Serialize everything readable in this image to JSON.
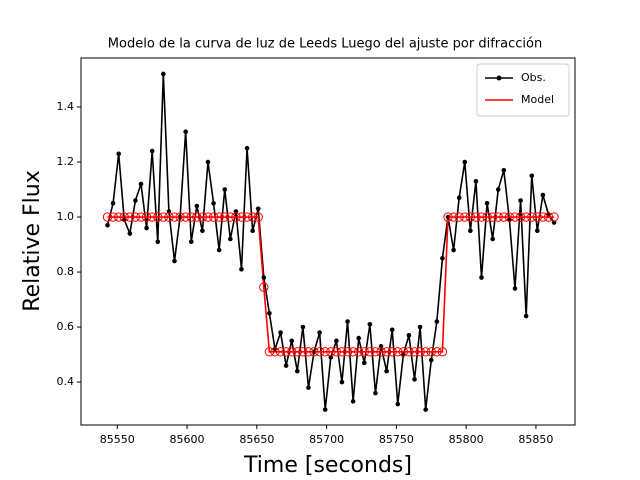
{
  "chart_data": {
    "type": "line",
    "title": "Modelo de la curva de luz de Leeds Luego del ajuste por difracción",
    "xlabel": "Time [seconds]",
    "ylabel": "Relative Flux",
    "x": [
      85543,
      85547,
      85551,
      85555,
      85559,
      85563,
      85567,
      85571,
      85575,
      85579,
      85583,
      85587,
      85591,
      85595,
      85599,
      85603,
      85607,
      85611,
      85615,
      85619,
      85623,
      85627,
      85631,
      85635,
      85639,
      85643,
      85647,
      85651,
      85655,
      85659,
      85663,
      85667,
      85671,
      85675,
      85679,
      85683,
      85687,
      85691,
      85695,
      85699,
      85703,
      85707,
      85711,
      85715,
      85719,
      85723,
      85727,
      85731,
      85735,
      85739,
      85743,
      85747,
      85751,
      85755,
      85759,
      85763,
      85767,
      85771,
      85775,
      85779,
      85783,
      85787,
      85791,
      85795,
      85799,
      85803,
      85807,
      85811,
      85815,
      85819,
      85823,
      85827,
      85831,
      85835,
      85839,
      85843,
      85847,
      85851,
      85855,
      85859,
      85863
    ],
    "series": [
      {
        "name": "Obs.",
        "color": "#000000",
        "marker": "dot",
        "values": [
          0.97,
          1.05,
          1.23,
          0.99,
          0.94,
          1.06,
          1.12,
          0.96,
          1.24,
          0.91,
          1.52,
          1.02,
          0.84,
          1.0,
          1.31,
          0.91,
          1.04,
          0.95,
          1.2,
          1.05,
          0.88,
          1.1,
          0.92,
          1.02,
          0.81,
          1.25,
          0.95,
          1.03,
          0.78,
          0.65,
          0.52,
          0.58,
          0.46,
          0.55,
          0.44,
          0.6,
          0.38,
          0.51,
          0.58,
          0.3,
          0.49,
          0.55,
          0.4,
          0.62,
          0.33,
          0.56,
          0.47,
          0.61,
          0.36,
          0.53,
          0.44,
          0.59,
          0.32,
          0.5,
          0.57,
          0.41,
          0.6,
          0.3,
          0.48,
          0.62,
          0.85,
          1.0,
          0.88,
          1.07,
          1.2,
          0.95,
          1.13,
          0.78,
          1.05,
          0.92,
          1.1,
          1.17,
          0.99,
          0.74,
          1.06,
          0.64,
          1.15,
          0.95,
          1.08,
          1.01,
          0.98
        ]
      },
      {
        "name": "Model",
        "color": "#ff0000",
        "marker": "open-circle",
        "values": [
          1,
          1,
          1,
          1,
          1,
          1,
          1,
          1,
          1,
          1,
          1,
          1,
          1,
          1,
          1,
          1,
          1,
          1,
          1,
          1,
          1,
          1,
          1,
          1,
          1,
          1,
          1,
          1,
          0.745,
          0.51,
          0.51,
          0.51,
          0.51,
          0.51,
          0.51,
          0.51,
          0.51,
          0.51,
          0.51,
          0.51,
          0.51,
          0.51,
          0.51,
          0.51,
          0.51,
          0.51,
          0.51,
          0.51,
          0.51,
          0.51,
          0.51,
          0.51,
          0.51,
          0.51,
          0.51,
          0.51,
          0.51,
          0.51,
          0.51,
          0.51,
          0.51,
          1,
          1,
          1,
          1,
          1,
          1,
          1,
          1,
          1,
          1,
          1,
          1,
          1,
          1,
          1,
          1,
          1,
          1,
          1,
          1
        ]
      }
    ],
    "xlim": [
      85524,
      85878
    ],
    "ylim": [
      0.244,
      1.578
    ],
    "xticks": [
      85550,
      85600,
      85650,
      85700,
      85750,
      85800,
      85850
    ],
    "yticks": [
      0.4,
      0.6,
      0.8,
      {
        "value": 1,
        "label": "1.0"
      },
      1.2,
      1.4
    ],
    "legend": "upper right"
  }
}
